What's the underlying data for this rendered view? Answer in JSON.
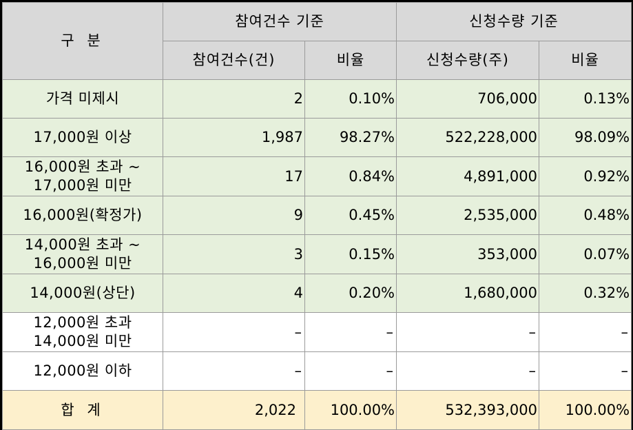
{
  "header": {
    "category": "구 분",
    "group_count": "참여건수 기준",
    "group_qty": "신청수량 기준",
    "count_col": "참여건수(건)",
    "count_ratio_col": "비율",
    "qty_col": "신청수량(주)",
    "qty_ratio_col": "비율"
  },
  "rows": [
    {
      "label_1": "가격 미제시",
      "label_2": "",
      "count": "2",
      "count_ratio": "0.10%",
      "qty": "706,000",
      "qty_ratio": "0.13%"
    },
    {
      "label_1": "17,000원 이상",
      "label_2": "",
      "count": "1,987",
      "count_ratio": "98.27%",
      "qty": "522,228,000",
      "qty_ratio": "98.09%"
    },
    {
      "label_1": "16,000원 초과 ~",
      "label_2": "17,000원 미만",
      "count": "17",
      "count_ratio": "0.84%",
      "qty": "4,891,000",
      "qty_ratio": "0.92%"
    },
    {
      "label_1": "16,000원(확정가)",
      "label_2": "",
      "count": "9",
      "count_ratio": "0.45%",
      "qty": "2,535,000",
      "qty_ratio": "0.48%"
    },
    {
      "label_1": "14,000원 초과 ~",
      "label_2": "16,000원 미만",
      "count": "3",
      "count_ratio": "0.15%",
      "qty": "353,000",
      "qty_ratio": "0.07%"
    },
    {
      "label_1": "14,000원(상단)",
      "label_2": "",
      "count": "4",
      "count_ratio": "0.20%",
      "qty": "1,680,000",
      "qty_ratio": "0.32%"
    },
    {
      "label_1": "12,000원 초과",
      "label_2": "14,000원 미만",
      "count": "–",
      "count_ratio": "–",
      "qty": "–",
      "qty_ratio": "–"
    },
    {
      "label_1": "12,000원 이하",
      "label_2": "",
      "count": "–",
      "count_ratio": "–",
      "qty": "–",
      "qty_ratio": "–"
    }
  ],
  "total": {
    "label": "합 계",
    "count": "2,022",
    "count_ratio": "100.00%",
    "qty": "532,393,000",
    "qty_ratio": "100.00%"
  },
  "colors": {
    "header_bg": "#d9d9d9",
    "green_row_bg": "#e6f0dc",
    "total_row_bg": "#fdf0cc",
    "border": "#9a9a9a"
  }
}
